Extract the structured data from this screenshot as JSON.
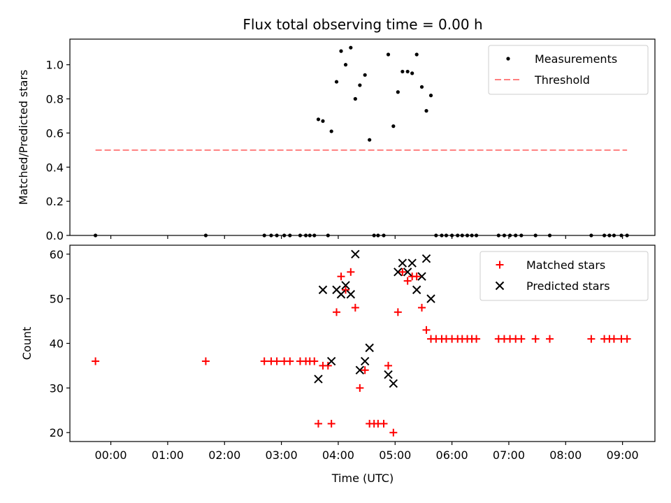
{
  "chart_data": [
    {
      "type": "scatter",
      "title": "Flux total observing time = 0.00 h",
      "xlabel": "",
      "ylabel": "Matched/Predicted stars",
      "ylim": [
        0,
        1.15
      ],
      "yticks": [
        0.0,
        0.2,
        0.4,
        0.6,
        0.8,
        1.0
      ],
      "ytick_labels": [
        "0.0",
        "0.2",
        "0.4",
        "0.6",
        "0.8",
        "1.0"
      ],
      "xlim": [
        -0.72,
        9.57
      ],
      "xticks": [
        0,
        1,
        2,
        3,
        4,
        5,
        6,
        7,
        8,
        9
      ],
      "xtick_labels": [],
      "legend_position": "top-right",
      "series": [
        {
          "name": "Measurements",
          "marker": "dot",
          "color": "#000000",
          "points": [
            [
              -0.27,
              0.0
            ],
            [
              1.67,
              0.0
            ],
            [
              2.7,
              0.0
            ],
            [
              2.82,
              0.0
            ],
            [
              2.92,
              0.0
            ],
            [
              3.05,
              0.0
            ],
            [
              3.15,
              0.0
            ],
            [
              3.33,
              0.0
            ],
            [
              3.43,
              0.0
            ],
            [
              3.5,
              0.0
            ],
            [
              3.58,
              0.0
            ],
            [
              3.65,
              0.68
            ],
            [
              3.73,
              0.67
            ],
            [
              3.82,
              0.0
            ],
            [
              3.88,
              0.61
            ],
            [
              3.97,
              0.9
            ],
            [
              4.05,
              1.08
            ],
            [
              4.13,
              1.0
            ],
            [
              4.22,
              1.1
            ],
            [
              4.3,
              0.8
            ],
            [
              4.38,
              0.88
            ],
            [
              4.47,
              0.94
            ],
            [
              4.55,
              0.56
            ],
            [
              4.63,
              0.0
            ],
            [
              4.7,
              0.0
            ],
            [
              4.8,
              0.0
            ],
            [
              4.88,
              1.06
            ],
            [
              4.97,
              0.64
            ],
            [
              5.05,
              0.84
            ],
            [
              5.13,
              0.96
            ],
            [
              5.22,
              0.96
            ],
            [
              5.3,
              0.95
            ],
            [
              5.38,
              1.06
            ],
            [
              5.47,
              0.87
            ],
            [
              5.55,
              0.73
            ],
            [
              5.63,
              0.82
            ],
            [
              5.72,
              0.0
            ],
            [
              5.82,
              0.0
            ],
            [
              5.9,
              0.0
            ],
            [
              6.0,
              0.0
            ],
            [
              6.1,
              0.0
            ],
            [
              6.18,
              0.0
            ],
            [
              6.27,
              0.0
            ],
            [
              6.35,
              0.0
            ],
            [
              6.43,
              0.0
            ],
            [
              6.82,
              0.0
            ],
            [
              6.92,
              0.0
            ],
            [
              7.02,
              0.0
            ],
            [
              7.12,
              0.0
            ],
            [
              7.22,
              0.0
            ],
            [
              7.47,
              0.0
            ],
            [
              7.72,
              0.0
            ],
            [
              8.45,
              0.0
            ],
            [
              8.68,
              0.0
            ],
            [
              8.77,
              0.0
            ],
            [
              8.85,
              0.0
            ],
            [
              8.98,
              0.0
            ],
            [
              9.08,
              0.0
            ]
          ]
        },
        {
          "name": "Threshold",
          "marker": "dashed-line",
          "color": "#ff7f7f",
          "points": [
            [
              -0.27,
              0.5
            ],
            [
              9.08,
              0.5
            ]
          ]
        }
      ]
    },
    {
      "type": "scatter",
      "title": "",
      "xlabel": "Time (UTC)",
      "ylabel": "Count",
      "ylim": [
        18,
        62
      ],
      "yticks": [
        20,
        30,
        40,
        50,
        60
      ],
      "ytick_labels": [
        "20",
        "30",
        "40",
        "50",
        "60"
      ],
      "xlim": [
        -0.72,
        9.57
      ],
      "xticks": [
        0,
        1,
        2,
        3,
        4,
        5,
        6,
        7,
        8,
        9
      ],
      "xtick_labels": [
        "00:00",
        "01:00",
        "02:00",
        "03:00",
        "04:00",
        "05:00",
        "06:00",
        "07:00",
        "08:00",
        "09:00"
      ],
      "legend_position": "top-right",
      "series": [
        {
          "name": "Matched stars",
          "marker": "plus",
          "color": "#ff0000",
          "points": [
            [
              -0.27,
              36
            ],
            [
              1.67,
              36
            ],
            [
              2.7,
              36
            ],
            [
              2.82,
              36
            ],
            [
              2.92,
              36
            ],
            [
              3.05,
              36
            ],
            [
              3.15,
              36
            ],
            [
              3.33,
              36
            ],
            [
              3.43,
              36
            ],
            [
              3.5,
              36
            ],
            [
              3.58,
              36
            ],
            [
              3.65,
              22
            ],
            [
              3.73,
              35
            ],
            [
              3.82,
              35
            ],
            [
              3.88,
              22
            ],
            [
              3.97,
              47
            ],
            [
              4.05,
              55
            ],
            [
              4.13,
              52
            ],
            [
              4.22,
              56
            ],
            [
              4.3,
              48
            ],
            [
              4.38,
              30
            ],
            [
              4.47,
              34
            ],
            [
              4.55,
              22
            ],
            [
              4.63,
              22
            ],
            [
              4.7,
              22
            ],
            [
              4.8,
              22
            ],
            [
              4.88,
              35
            ],
            [
              4.97,
              20
            ],
            [
              5.05,
              47
            ],
            [
              5.13,
              56
            ],
            [
              5.22,
              54
            ],
            [
              5.3,
              55
            ],
            [
              5.38,
              55
            ],
            [
              5.47,
              48
            ],
            [
              5.55,
              43
            ],
            [
              5.63,
              41
            ],
            [
              5.72,
              41
            ],
            [
              5.82,
              41
            ],
            [
              5.9,
              41
            ],
            [
              6.0,
              41
            ],
            [
              6.1,
              41
            ],
            [
              6.18,
              41
            ],
            [
              6.27,
              41
            ],
            [
              6.35,
              41
            ],
            [
              6.43,
              41
            ],
            [
              6.82,
              41
            ],
            [
              6.92,
              41
            ],
            [
              7.02,
              41
            ],
            [
              7.12,
              41
            ],
            [
              7.22,
              41
            ],
            [
              7.47,
              41
            ],
            [
              7.72,
              41
            ],
            [
              8.45,
              41
            ],
            [
              8.68,
              41
            ],
            [
              8.77,
              41
            ],
            [
              8.85,
              41
            ],
            [
              8.98,
              41
            ],
            [
              9.08,
              41
            ]
          ]
        },
        {
          "name": "Predicted stars",
          "marker": "x",
          "color": "#000000",
          "points": [
            [
              3.65,
              32
            ],
            [
              3.73,
              52
            ],
            [
              3.88,
              36
            ],
            [
              3.97,
              52
            ],
            [
              4.05,
              51
            ],
            [
              4.13,
              53
            ],
            [
              4.22,
              51
            ],
            [
              4.3,
              60
            ],
            [
              4.38,
              34
            ],
            [
              4.47,
              36
            ],
            [
              4.55,
              39
            ],
            [
              4.88,
              33
            ],
            [
              4.97,
              31
            ],
            [
              5.05,
              56
            ],
            [
              5.13,
              58
            ],
            [
              5.22,
              56
            ],
            [
              5.3,
              58
            ],
            [
              5.38,
              52
            ],
            [
              5.47,
              55
            ],
            [
              5.55,
              59
            ],
            [
              5.63,
              50
            ]
          ]
        }
      ]
    }
  ]
}
